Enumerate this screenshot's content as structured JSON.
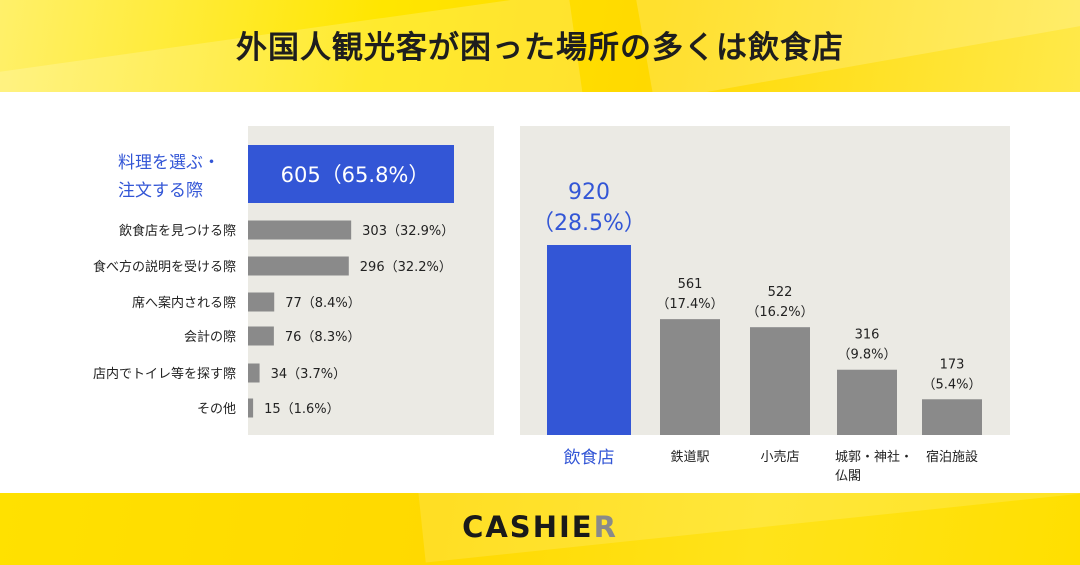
{
  "title": "外国人観光客が困った場所の多くは飲食店",
  "logo": {
    "main": "CASHIE",
    "accent": "R"
  },
  "colors": {
    "highlight": "#3356d6",
    "bar": "#8a8a8a",
    "panel": "#ebeae4",
    "brand_yellow": "#ffe100"
  },
  "chart_data": [
    {
      "type": "bar",
      "orientation": "horizontal",
      "categories": [
        "料理を選ぶ・注文する際",
        "飲食店を見つける際",
        "食べ方の説明を受ける際",
        "席へ案内される際",
        "会計の際",
        "店内でトイレ等を探す際",
        "その他"
      ],
      "category_lines": [
        [
          "料理を選ぶ・",
          "注文する際"
        ],
        [
          "飲食店を見つける際"
        ],
        [
          "食べ方の説明を受ける際"
        ],
        [
          "席へ案内される際"
        ],
        [
          "会計の際"
        ],
        [
          "店内でトイレ等を探す際"
        ],
        [
          "その他"
        ]
      ],
      "values": [
        605,
        303,
        296,
        77,
        76,
        34,
        15
      ],
      "percents": [
        "65.8%",
        "32.9%",
        "32.2%",
        "8.4%",
        "8.3%",
        "3.7%",
        "1.6%"
      ],
      "labels": [
        "605（65.8%）",
        "303（32.9%）",
        "296（32.2%）",
        "77（8.4%）",
        "76（8.3%）",
        "34（3.7%）",
        "15（1.6%）"
      ],
      "highlight_index": 0,
      "xlim": [
        0,
        605
      ]
    },
    {
      "type": "bar",
      "orientation": "vertical",
      "categories": [
        "飲食店",
        "鉄道駅",
        "小売店",
        "城郭・神社・仏閣",
        "宿泊施設"
      ],
      "category_lines": [
        [
          "飲食店"
        ],
        [
          "鉄道駅"
        ],
        [
          "小売店"
        ],
        [
          "城郭・神社・",
          "仏閣"
        ],
        [
          "宿泊施設"
        ]
      ],
      "values": [
        920,
        561,
        522,
        316,
        173
      ],
      "percents": [
        "28.5%",
        "17.4%",
        "16.2%",
        "9.8%",
        "5.4%"
      ],
      "label_lines": [
        [
          "920",
          "（28.5%）"
        ],
        [
          "561",
          "（17.4%）"
        ],
        [
          "522",
          "（16.2%）"
        ],
        [
          "316",
          "（9.8%）"
        ],
        [
          "173",
          "（5.4%）"
        ]
      ],
      "highlight_index": 0,
      "ylim": [
        0,
        920
      ]
    }
  ]
}
